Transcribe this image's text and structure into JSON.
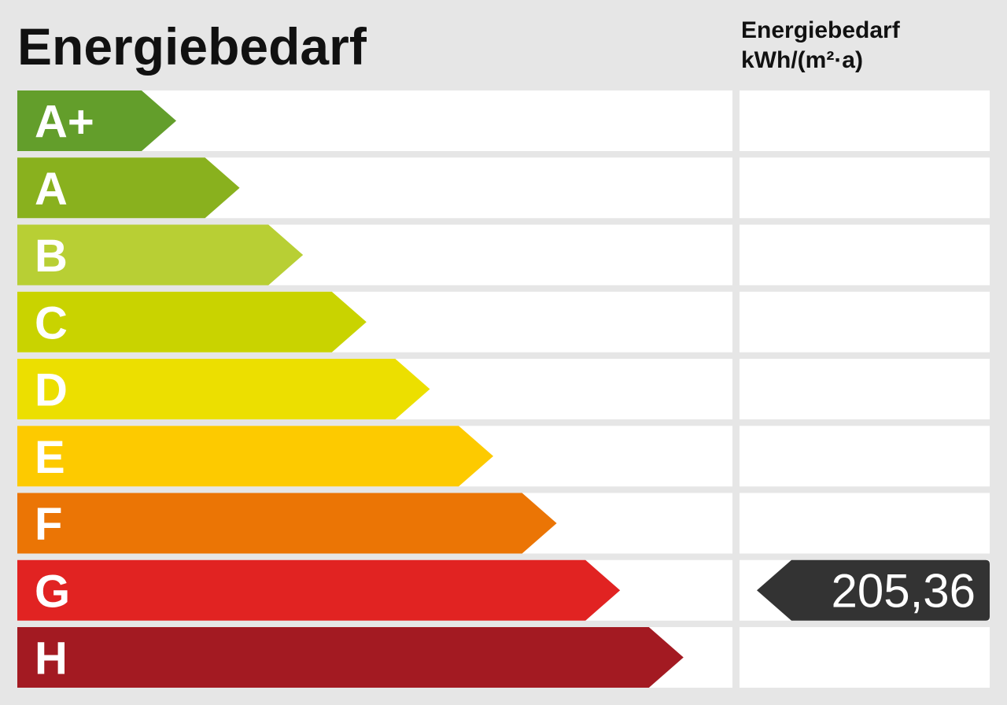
{
  "title": "Energiebedarf",
  "value_column_header": {
    "line1": "Energiebedarf",
    "line2": "kWh/(m²·a)"
  },
  "chart_data": {
    "type": "bar",
    "title": "Energiebedarf",
    "categories": [
      "A+",
      "A",
      "B",
      "C",
      "D",
      "E",
      "F",
      "G",
      "H"
    ],
    "colors": [
      "#639e2b",
      "#89b11e",
      "#b8cf34",
      "#c9d300",
      "#ecdf00",
      "#fdca00",
      "#eb7505",
      "#e12322",
      "#a31a22"
    ],
    "marker": {
      "category": "G",
      "value": 205.36,
      "label": "205,36",
      "color": "#333333"
    }
  }
}
